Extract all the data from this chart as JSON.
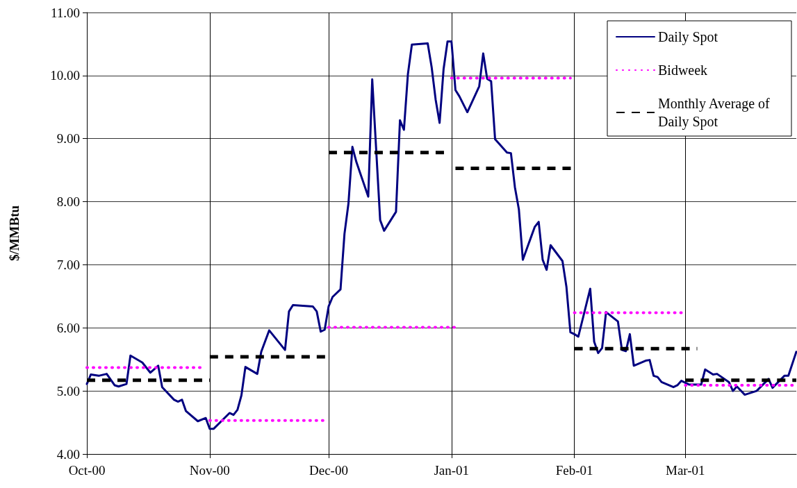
{
  "chart_data": {
    "type": "line",
    "ylabel": "$/MMBtu",
    "xlim": [
      "2000-10-01",
      "2001-03-29"
    ],
    "xticks": [
      {
        "value": "2000-10-01",
        "label": "Oct-00"
      },
      {
        "value": "2000-11-01",
        "label": "Nov-00"
      },
      {
        "value": "2000-12-01",
        "label": "Dec-00"
      },
      {
        "value": "2001-01-01",
        "label": "Jan-01"
      },
      {
        "value": "2001-02-01",
        "label": "Feb-01"
      },
      {
        "value": "2001-03-01",
        "label": "Mar-01"
      }
    ],
    "ylim": [
      4,
      11
    ],
    "yticks": [
      {
        "value": 4,
        "label": "4.00"
      },
      {
        "value": 5,
        "label": "5.00"
      },
      {
        "value": 6,
        "label": "6.00"
      },
      {
        "value": 7,
        "label": "7.00"
      },
      {
        "value": 8,
        "label": "8.00"
      },
      {
        "value": 9,
        "label": "9.00"
      },
      {
        "value": 10,
        "label": "10.00"
      },
      {
        "value": 11,
        "label": "11.00"
      }
    ],
    "grid": true,
    "legend": "top right",
    "marker": "none",
    "series": [
      {
        "name": "Daily Spot",
        "color": "#000080",
        "line_style": "solid",
        "x": [
          "2000-10-01",
          "2000-10-02",
          "2000-10-04",
          "2000-10-06",
          "2000-10-08",
          "2000-10-09",
          "2000-10-11",
          "2000-10-12",
          "2000-10-15",
          "2000-10-17",
          "2000-10-19",
          "2000-10-20",
          "2000-10-23",
          "2000-10-24",
          "2000-10-25",
          "2000-10-26",
          "2000-10-29",
          "2000-10-31",
          "2000-11-01",
          "2000-11-02",
          "2000-11-06",
          "2000-11-07",
          "2000-11-08",
          "2000-11-09",
          "2000-11-10",
          "2000-11-13",
          "2000-11-14",
          "2000-11-16",
          "2000-11-20",
          "2000-11-21",
          "2000-11-22",
          "2000-11-27",
          "2000-11-28",
          "2000-11-29",
          "2000-11-30",
          "2000-12-01",
          "2000-12-02",
          "2000-12-04",
          "2000-12-05",
          "2000-12-06",
          "2000-12-07",
          "2000-12-08",
          "2000-12-11",
          "2000-12-12",
          "2000-12-14",
          "2000-12-15",
          "2000-12-18",
          "2000-12-19",
          "2000-12-20",
          "2000-12-21",
          "2000-12-22",
          "2000-12-26",
          "2000-12-27",
          "2000-12-28",
          "2000-12-29",
          "2000-12-30",
          "2000-12-31",
          "2001-01-01",
          "2001-01-02",
          "2001-01-03",
          "2001-01-05",
          "2001-01-08",
          "2001-01-09",
          "2001-01-10",
          "2001-01-11",
          "2001-01-12",
          "2001-01-15",
          "2001-01-16",
          "2001-01-17",
          "2001-01-18",
          "2001-01-19",
          "2001-01-22",
          "2001-01-23",
          "2001-01-24",
          "2001-01-25",
          "2001-01-26",
          "2001-01-29",
          "2001-01-30",
          "2001-01-31",
          "2001-02-01",
          "2001-02-02",
          "2001-02-05",
          "2001-02-06",
          "2001-02-07",
          "2001-02-08",
          "2001-02-09",
          "2001-02-12",
          "2001-02-13",
          "2001-02-14",
          "2001-02-15",
          "2001-02-16",
          "2001-02-19",
          "2001-02-20",
          "2001-02-21",
          "2001-02-22",
          "2001-02-23",
          "2001-02-26",
          "2001-02-27",
          "2001-02-28",
          "2001-03-02",
          "2001-03-05",
          "2001-03-06",
          "2001-03-08",
          "2001-03-09",
          "2001-03-12",
          "2001-03-13",
          "2001-03-14",
          "2001-03-16",
          "2001-03-19",
          "2001-03-22",
          "2001-03-23",
          "2001-03-26",
          "2001-03-27",
          "2001-03-29"
        ],
        "values": [
          5.11,
          5.26,
          5.24,
          5.27,
          5.09,
          5.07,
          5.11,
          5.56,
          5.45,
          5.29,
          5.4,
          5.06,
          4.86,
          4.83,
          4.86,
          4.68,
          4.52,
          4.57,
          4.4,
          4.4,
          4.65,
          4.62,
          4.7,
          4.93,
          5.38,
          5.27,
          5.62,
          5.96,
          5.65,
          6.26,
          6.36,
          6.34,
          6.26,
          5.94,
          5.97,
          6.34,
          6.49,
          6.61,
          7.49,
          7.97,
          8.87,
          8.63,
          8.08,
          9.94,
          7.71,
          7.54,
          7.84,
          9.29,
          9.14,
          10.02,
          10.49,
          10.51,
          10.13,
          9.62,
          9.25,
          10.1,
          10.54,
          10.54,
          9.77,
          9.67,
          9.42,
          9.83,
          10.35,
          9.95,
          9.91,
          8.99,
          8.78,
          8.77,
          8.23,
          7.88,
          7.08,
          7.6,
          7.68,
          7.08,
          6.92,
          7.31,
          7.06,
          6.65,
          5.93,
          5.9,
          5.86,
          6.62,
          5.78,
          5.6,
          5.68,
          6.25,
          6.1,
          5.65,
          5.63,
          5.9,
          5.4,
          5.48,
          5.49,
          5.24,
          5.22,
          5.14,
          5.06,
          5.09,
          5.16,
          5.1,
          5.1,
          5.34,
          5.26,
          5.27,
          5.14,
          5.0,
          5.07,
          4.94,
          5.0,
          5.19,
          5.05,
          5.24,
          5.24,
          5.62
        ]
      },
      {
        "name": "Bidweek",
        "color": "#ff00ff",
        "line_style": "dotted",
        "x": [
          "2000-10-01",
          "2000-10-30"
        ],
        "values": [
          5.37,
          5.37
        ]
      },
      {
        "color": "#ff00ff",
        "line_style": "dotted",
        "x": [
          "2000-11-01",
          "2000-11-30"
        ],
        "values": [
          4.53,
          4.53
        ]
      },
      {
        "color": "#ff00ff",
        "line_style": "dotted",
        "x": [
          "2000-12-01",
          "2001-01-02"
        ],
        "values": [
          6.01,
          6.01
        ]
      },
      {
        "color": "#ff00ff",
        "line_style": "dotted",
        "x": [
          "2001-01-01",
          "2001-01-31"
        ],
        "values": [
          9.96,
          9.96
        ]
      },
      {
        "color": "#ff00ff",
        "line_style": "dotted",
        "x": [
          "2001-02-01",
          "2001-03-01"
        ],
        "values": [
          6.24,
          6.24
        ]
      },
      {
        "color": "#ff00ff",
        "line_style": "dotted",
        "x": [
          "2001-03-01",
          "2001-03-29"
        ],
        "values": [
          5.09,
          5.09
        ]
      },
      {
        "name": "Monthly Average of Daily Spot",
        "color": "#000000",
        "line_style": "dashed",
        "x": [
          "2000-10-01",
          "2000-11-01"
        ],
        "values": [
          5.17,
          5.17
        ]
      },
      {
        "color": "#000000",
        "line_style": "dashed",
        "x": [
          "2000-11-01",
          "2000-12-01"
        ],
        "values": [
          5.54,
          5.54
        ]
      },
      {
        "color": "#000000",
        "line_style": "dashed",
        "x": [
          "2000-12-01",
          "2000-12-31"
        ],
        "values": [
          8.78,
          8.78
        ]
      },
      {
        "color": "#000000",
        "line_style": "dashed",
        "x": [
          "2001-01-02",
          "2001-02-01"
        ],
        "values": [
          8.53,
          8.53
        ]
      },
      {
        "color": "#000000",
        "line_style": "dashed",
        "x": [
          "2001-02-01",
          "2001-03-04"
        ],
        "values": [
          5.67,
          5.67
        ]
      },
      {
        "color": "#000000",
        "line_style": "dashed",
        "x": [
          "2001-03-01",
          "2001-03-29"
        ],
        "values": [
          5.17,
          5.17
        ]
      }
    ]
  }
}
